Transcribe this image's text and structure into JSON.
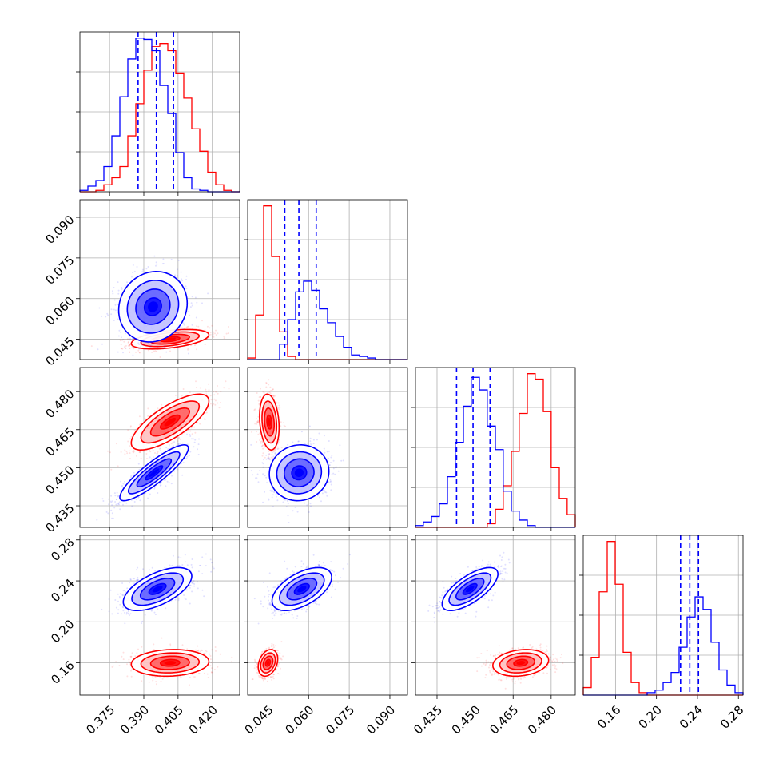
{
  "chart_data": {
    "type": "corner",
    "title": "",
    "grid": true,
    "colors": {
      "series_a": "#0000ff",
      "series_b": "#ff0000",
      "quantiles": "#0000ff"
    },
    "series": [
      {
        "name": "",
        "color": "#0000ff"
      },
      {
        "name": "",
        "color": "#ff0000"
      }
    ],
    "parameters": [
      {
        "label": "",
        "range": [
          0.362,
          0.432
        ],
        "ticks": [
          "0.375",
          "0.390",
          "0.405",
          "0.420"
        ],
        "tick_values": [
          0.375,
          0.39,
          0.405,
          0.42
        ]
      },
      {
        "label": "",
        "range": [
          0.0375,
          0.0965
        ],
        "ticks": [
          "0.045",
          "0.060",
          "0.075",
          "0.090"
        ],
        "tick_values": [
          0.045,
          0.06,
          0.075,
          0.09
        ]
      },
      {
        "label": "",
        "range": [
          0.4265,
          0.4895
        ],
        "ticks": [
          "0.435",
          "0.450",
          "0.465",
          "0.480"
        ],
        "tick_values": [
          0.435,
          0.45,
          0.465,
          0.48
        ]
      },
      {
        "label": "",
        "range": [
          0.1285,
          0.2845
        ],
        "ticks": [
          "0.16",
          "0.20",
          "0.24",
          "0.28"
        ],
        "tick_values": [
          0.16,
          0.2,
          0.24,
          0.28
        ]
      }
    ],
    "histograms": [
      {
        "param": 0,
        "bin_edges": [
          0.362,
          0.3655,
          0.369,
          0.3725,
          0.376,
          0.3795,
          0.383,
          0.3865,
          0.39,
          0.3935,
          0.397,
          0.4005,
          0.404,
          0.4075,
          0.411,
          0.4145,
          0.418,
          0.4215,
          0.425,
          0.4285,
          0.432
        ],
        "series_a_counts": [
          1,
          4,
          8,
          18,
          40,
          68,
          95,
          110,
          109,
          101,
          76,
          56,
          28,
          10,
          2,
          1,
          0,
          0,
          0,
          0
        ],
        "series_b_counts": [
          0,
          0,
          1,
          5,
          10,
          18,
          40,
          63,
          87,
          104,
          106,
          101,
          85,
          67,
          45,
          29,
          14,
          5,
          1,
          0
        ],
        "quantiles": [
          0.3875,
          0.3955,
          0.403
        ]
      },
      {
        "param": 1,
        "bin_edges": [
          0.0375,
          0.04045,
          0.0434,
          0.04635,
          0.0493,
          0.05225,
          0.0552,
          0.05815,
          0.0611,
          0.06405,
          0.067,
          0.06995,
          0.0729,
          0.07585,
          0.0788,
          0.08175,
          0.0847,
          0.08765,
          0.0906,
          0.09355,
          0.0965
        ],
        "series_a_counts": [
          0,
          0,
          0,
          0,
          10,
          26,
          44,
          51,
          45,
          33,
          24,
          15,
          8,
          3,
          2,
          1,
          0,
          0,
          0,
          0
        ],
        "series_b_counts": [
          1,
          29,
          100,
          67,
          18,
          2,
          0,
          0,
          0,
          0,
          0,
          0,
          0,
          0,
          0,
          0,
          0,
          0,
          0,
          0
        ],
        "quantiles": [
          0.0512,
          0.0564,
          0.0628
        ]
      },
      {
        "param": 2,
        "bin_edges": [
          0.4265,
          0.4296,
          0.4328,
          0.4359,
          0.4391,
          0.4422,
          0.4454,
          0.4485,
          0.4517,
          0.4548,
          0.458,
          0.4611,
          0.4643,
          0.4674,
          0.4706,
          0.4737,
          0.4769,
          0.48,
          0.4832,
          0.4863,
          0.4895
        ],
        "series_a_counts": [
          1,
          3,
          6,
          13,
          28,
          47,
          67,
          83,
          76,
          56,
          43,
          20,
          9,
          4,
          1,
          0,
          0,
          0,
          0,
          0
        ],
        "series_b_counts": [
          0,
          0,
          0,
          0,
          0,
          0,
          0,
          0,
          0,
          2,
          10,
          23,
          42,
          63,
          85,
          82,
          64,
          33,
          16,
          7
        ],
        "quantiles": [
          0.4427,
          0.4492,
          0.4559
        ]
      },
      {
        "param": 3,
        "bin_edges": [
          0.1285,
          0.1363,
          0.1441,
          0.1519,
          0.1597,
          0.1675,
          0.1753,
          0.1831,
          0.1909,
          0.1987,
          0.2065,
          0.2143,
          0.2221,
          0.2299,
          0.2377,
          0.2455,
          0.2533,
          0.2611,
          0.2689,
          0.2767,
          0.2845
        ],
        "series_a_counts": [
          0,
          0,
          0,
          0,
          0,
          0,
          0,
          0,
          1,
          2,
          5,
          9,
          19,
          31,
          39,
          34,
          21,
          10,
          4,
          1
        ],
        "series_b_counts": [
          3,
          15,
          41,
          61,
          44,
          17,
          5,
          1,
          0,
          0,
          0,
          0,
          0,
          0,
          0,
          0,
          0,
          0,
          0,
          0
        ],
        "quantiles": [
          0.2235,
          0.2325,
          0.241
        ]
      }
    ],
    "joint_distributions": [
      {
        "x_param": 0,
        "y_param": 1,
        "series_a": {
          "center": [
            0.394,
            0.057
          ],
          "std": [
            0.0075,
            0.0065
          ],
          "rho": 0.1
        },
        "series_b": {
          "center": [
            0.4015,
            0.045
          ],
          "std": [
            0.0085,
            0.0018
          ],
          "rho": 0.45
        }
      },
      {
        "x_param": 0,
        "y_param": 2,
        "series_a": {
          "center": [
            0.3945,
            0.448
          ],
          "std": [
            0.0075,
            0.0055
          ],
          "rho": 0.88
        },
        "series_b": {
          "center": [
            0.4015,
            0.468
          ],
          "std": [
            0.0085,
            0.0055
          ],
          "rho": 0.75
        }
      },
      {
        "x_param": 1,
        "y_param": 2,
        "series_a": {
          "center": [
            0.0565,
            0.448
          ],
          "std": [
            0.0055,
            0.0055
          ],
          "rho": 0.05
        },
        "series_b": {
          "center": [
            0.0455,
            0.468
          ],
          "std": [
            0.0018,
            0.0055
          ],
          "rho": -0.2
        }
      },
      {
        "x_param": 0,
        "y_param": 3,
        "series_a": {
          "center": [
            0.396,
            0.232
          ],
          "std": [
            0.0075,
            0.0105
          ],
          "rho": 0.6
        },
        "series_b": {
          "center": [
            0.4015,
            0.16
          ],
          "std": [
            0.0085,
            0.0065
          ],
          "rho": 0.1
        }
      },
      {
        "x_param": 1,
        "y_param": 3,
        "series_a": {
          "center": [
            0.0575,
            0.232
          ],
          "std": [
            0.0055,
            0.0105
          ],
          "rho": 0.55
        },
        "series_b": {
          "center": [
            0.045,
            0.16
          ],
          "std": [
            0.0018,
            0.0065
          ],
          "rho": 0.3
        }
      },
      {
        "x_param": 2,
        "y_param": 3,
        "series_a": {
          "center": [
            0.448,
            0.232
          ],
          "std": [
            0.0055,
            0.0105
          ],
          "rho": 0.7
        },
        "series_b": {
          "center": [
            0.468,
            0.16
          ],
          "std": [
            0.0055,
            0.0065
          ],
          "rho": 0.2
        }
      }
    ],
    "contour_levels_sigma": [
      0.5,
      1.0,
      1.5,
      2.0
    ]
  }
}
